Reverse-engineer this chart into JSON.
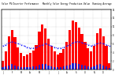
{
  "title": "Solar PV/Inverter Performance   Monthly Solar Energy Production Value  Running Average",
  "bar_values": [
    2.1,
    4.2,
    7.8,
    9.2,
    7.5,
    5.1,
    3.8,
    3.2,
    3.5,
    3.8,
    4.5,
    5.8,
    8.8,
    10.5,
    9.5,
    7.2,
    5.5,
    4.2,
    3.5,
    3.8,
    4.8,
    6.5,
    9.2,
    11.5,
    11.0,
    9.8,
    8.2,
    6.5,
    5.0,
    4.2,
    5.5,
    8.5,
    9.5,
    7.8,
    5.5,
    1.5
  ],
  "avg_values": [
    5.5,
    5.8,
    6.2,
    6.5,
    6.3,
    6.0,
    5.8,
    5.5,
    5.2,
    5.0,
    5.0,
    5.2,
    5.5,
    5.8,
    6.0,
    5.8,
    5.5,
    5.2,
    5.0,
    5.0,
    5.2,
    5.5,
    5.8,
    6.2,
    6.5,
    6.5,
    6.3,
    6.0,
    5.8,
    5.5,
    5.8,
    6.0,
    6.2,
    6.0,
    5.8,
    5.5
  ],
  "small_values": [
    0.5,
    0.8,
    1.0,
    1.2,
    1.0,
    0.8,
    0.6,
    0.5,
    0.5,
    0.6,
    0.7,
    0.8,
    1.1,
    1.3,
    1.2,
    1.0,
    0.8,
    0.6,
    0.5,
    0.6,
    0.7,
    0.9,
    1.1,
    1.4,
    1.4,
    1.3,
    1.1,
    0.9,
    0.7,
    0.6,
    0.8,
    1.1,
    1.2,
    1.0,
    0.8,
    0.3
  ],
  "bar_color": "#FF0000",
  "avg_color": "#2222FF",
  "small_color": "#2222CC",
  "bg_color": "#FFFFFF",
  "grid_color": "#AAAAAA",
  "ylim_max": 14,
  "yticks": [
    0,
    2,
    4,
    6,
    8,
    10,
    12,
    14
  ],
  "n_bars": 36,
  "title_fontsize": 2.0,
  "tick_fontsize": 1.8,
  "bar_width": 0.82,
  "small_bar_width": 0.55,
  "avg_linewidth": 0.7,
  "avg_markersize": 1.0,
  "grid_linewidth": 0.3,
  "spine_linewidth": 0.3
}
